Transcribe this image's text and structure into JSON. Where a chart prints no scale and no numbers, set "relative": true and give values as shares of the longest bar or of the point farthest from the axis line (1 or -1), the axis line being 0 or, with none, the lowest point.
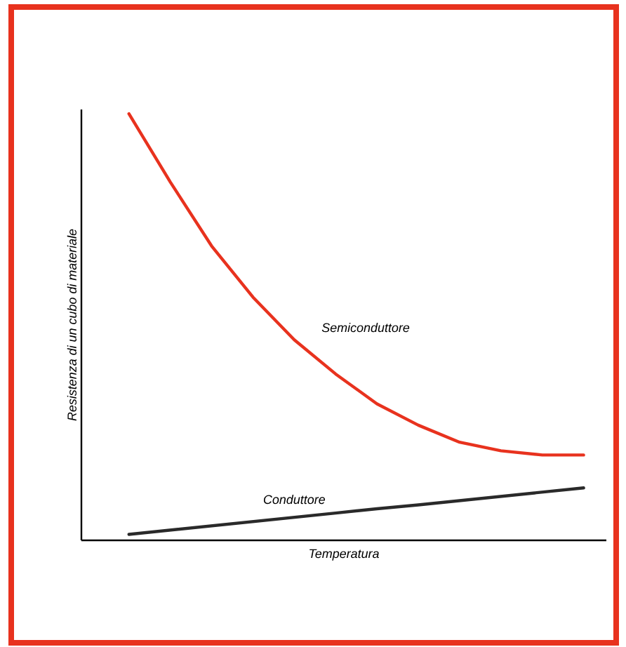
{
  "chart_data": {
    "type": "line",
    "relative": true,
    "xlabel": "Temperatura",
    "ylabel": "Resistenza di un cubo di materiale",
    "categories": [
      null,
      null,
      null,
      null,
      null,
      null,
      null,
      null,
      null,
      null,
      null,
      null
    ],
    "series": [
      {
        "name": "Semiconduttore",
        "color": "#e8321e",
        "values": [
          1,
          0.84,
          0.69,
          0.57,
          0.47,
          0.39,
          0.32,
          0.27,
          0.23,
          0.21,
          0.2,
          0.2
        ]
      },
      {
        "name": "Conduttore",
        "color": "#2a2a2a",
        "values": [
          0.014,
          0.024,
          0.034,
          0.044,
          0.054,
          0.064,
          0.074,
          0.083,
          0.093,
          0.103,
          0.113,
          0.123
        ]
      }
    ]
  }
}
